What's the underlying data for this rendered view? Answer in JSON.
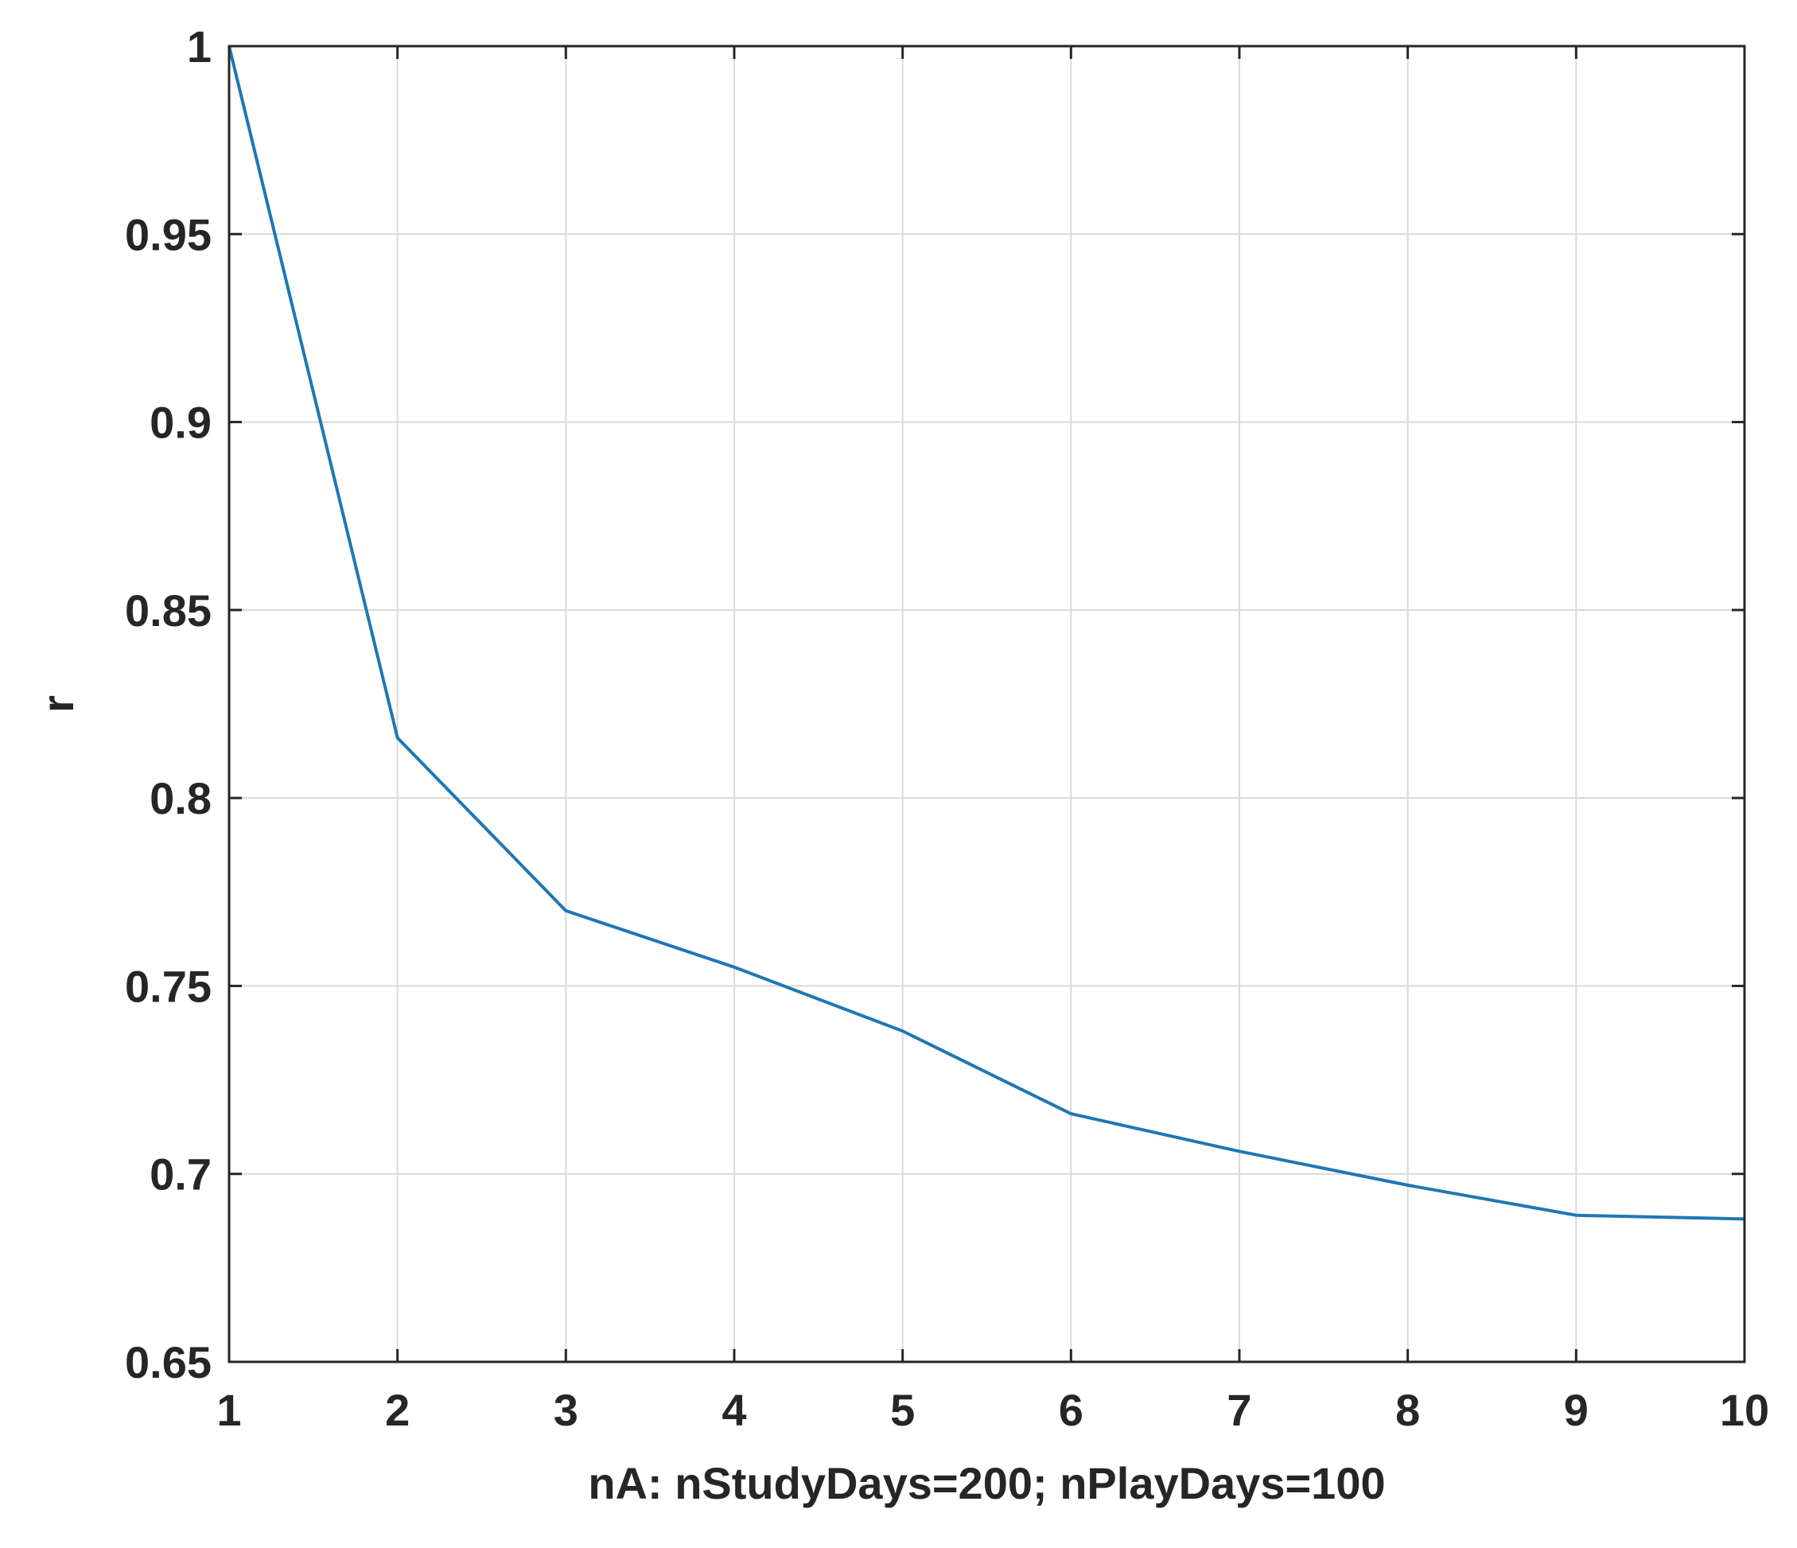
{
  "chart_data": {
    "type": "line",
    "title": "",
    "xlabel": "nA: nStudyDays=200; nPlayDays=100",
    "ylabel": "r",
    "xlim": [
      1,
      10
    ],
    "ylim": [
      0.65,
      1
    ],
    "xticks": [
      1,
      2,
      3,
      4,
      5,
      6,
      7,
      8,
      9,
      10
    ],
    "xtick_labels": [
      "1",
      "2",
      "3",
      "4",
      "5",
      "6",
      "7",
      "8",
      "9",
      "10"
    ],
    "yticks": [
      0.65,
      0.7,
      0.75,
      0.8,
      0.85,
      0.9,
      0.95,
      1
    ],
    "ytick_labels": [
      "0.65",
      "0.7",
      "0.75",
      "0.8",
      "0.85",
      "0.9",
      "0.95",
      "1"
    ],
    "grid": true,
    "legend": "none",
    "series": [
      {
        "color": "#1f77b4",
        "x": [
          1,
          2,
          3,
          4,
          5,
          6,
          7,
          8,
          9,
          10
        ],
        "y": [
          1.0,
          0.816,
          0.77,
          0.755,
          0.738,
          0.716,
          0.706,
          0.697,
          0.689,
          0.688
        ]
      }
    ]
  }
}
